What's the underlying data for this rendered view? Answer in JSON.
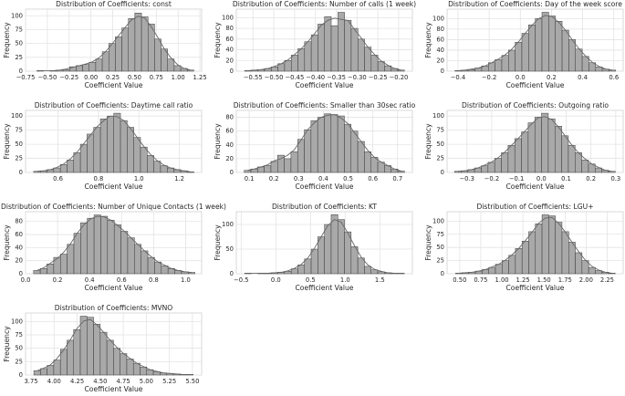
{
  "chart_data": [
    {
      "type": "histogram",
      "title": "Distribution of Coefficients: const",
      "xlabel": "Coefficient Value",
      "ylabel": "Frequency",
      "color": "#a9a9a9",
      "edgecolor": "#3a3a3a",
      "kde_color": "#666666",
      "grid": true,
      "bins": [
        -0.62,
        -0.545,
        -0.47,
        -0.395,
        -0.32,
        -0.245,
        -0.17,
        -0.095,
        -0.02,
        0.055,
        0.13,
        0.205,
        0.28,
        0.355,
        0.43,
        0.505,
        0.58,
        0.655,
        0.73,
        0.805,
        0.88,
        0.955,
        1.03,
        1.105,
        1.18
      ],
      "counts": [
        1,
        0,
        1,
        2,
        3,
        8,
        10,
        12,
        16,
        22,
        35,
        50,
        62,
        78,
        95,
        105,
        98,
        85,
        58,
        40,
        22,
        10,
        5,
        2
      ],
      "kde": [
        1,
        1,
        1,
        2,
        4,
        7,
        10,
        13,
        17,
        24,
        35,
        49,
        64,
        79,
        93,
        99,
        96,
        80,
        61,
        40,
        24,
        12,
        5,
        2
      ],
      "xlim": [
        -0.75,
        1.27
      ],
      "ylim": [
        0,
        112
      ],
      "xticks": [
        {
          "value": -0.75,
          "label": "−0.75"
        },
        {
          "value": -0.5,
          "label": "−0.50"
        },
        {
          "value": -0.25,
          "label": "−0.25"
        },
        {
          "value": 0,
          "label": "0.00"
        },
        {
          "value": 0.25,
          "label": "0.25"
        },
        {
          "value": 0.5,
          "label": "0.50"
        },
        {
          "value": 0.75,
          "label": "0.75"
        },
        {
          "value": 1,
          "label": "1.00"
        },
        {
          "value": 1.25,
          "label": "1.25"
        }
      ],
      "yticks": [
        0,
        25,
        50,
        75,
        100
      ]
    },
    {
      "type": "histogram",
      "title": "Distribution of Coefficients: Number of calls (1 week)",
      "xlabel": "Coefficient Value",
      "ylabel": "Frequency",
      "color": "#a9a9a9",
      "edgecolor": "#3a3a3a",
      "kde_color": "#666666",
      "grid": true,
      "bins": [
        -0.57,
        -0.554,
        -0.538,
        -0.522,
        -0.506,
        -0.49,
        -0.474,
        -0.458,
        -0.442,
        -0.426,
        -0.41,
        -0.394,
        -0.378,
        -0.362,
        -0.346,
        -0.33,
        -0.314,
        -0.298,
        -0.282,
        -0.266,
        -0.25,
        -0.234,
        -0.218,
        -0.202,
        -0.186
      ],
      "counts": [
        1,
        2,
        3,
        5,
        8,
        14,
        20,
        30,
        42,
        55,
        68,
        88,
        102,
        85,
        110,
        95,
        80,
        60,
        45,
        30,
        18,
        10,
        5,
        2
      ],
      "kde": [
        1,
        2,
        3,
        5,
        9,
        14,
        21,
        31,
        42,
        55,
        70,
        86,
        95,
        99,
        97,
        95,
        78,
        62,
        45,
        31,
        19,
        11,
        5,
        2
      ],
      "xlim": [
        -0.59,
        -0.167
      ],
      "ylim": [
        0,
        116
      ],
      "xticks": [
        {
          "value": -0.55,
          "label": "−0.55"
        },
        {
          "value": -0.5,
          "label": "−0.50"
        },
        {
          "value": -0.45,
          "label": "−0.45"
        },
        {
          "value": -0.4,
          "label": "−0.40"
        },
        {
          "value": -0.35,
          "label": "−0.35"
        },
        {
          "value": -0.3,
          "label": "−0.30"
        },
        {
          "value": -0.25,
          "label": "−0.25"
        },
        {
          "value": -0.2,
          "label": "−0.20"
        }
      ],
      "yticks": [
        0,
        20,
        40,
        60,
        80,
        100
      ]
    },
    {
      "type": "histogram",
      "title": "Distribution of Coefficients: Day of the week score",
      "xlabel": "Coefficient Value",
      "ylabel": "Frequency",
      "color": "#a9a9a9",
      "edgecolor": "#3a3a3a",
      "kde_color": "#666666",
      "grid": true,
      "bins": [
        -0.42,
        -0.377,
        -0.334,
        -0.291,
        -0.248,
        -0.205,
        -0.162,
        -0.119,
        -0.076,
        -0.033,
        0.01,
        0.053,
        0.096,
        0.139,
        0.182,
        0.225,
        0.268,
        0.311,
        0.354,
        0.397,
        0.44,
        0.483,
        0.526,
        0.569,
        0.612
      ],
      "counts": [
        1,
        2,
        3,
        6,
        10,
        16,
        22,
        30,
        40,
        55,
        72,
        88,
        100,
        112,
        105,
        95,
        78,
        60,
        42,
        28,
        16,
        8,
        4,
        2
      ],
      "kde": [
        1,
        2,
        4,
        6,
        10,
        16,
        23,
        31,
        42,
        56,
        72,
        87,
        100,
        106,
        104,
        93,
        78,
        60,
        43,
        29,
        17,
        9,
        4,
        2
      ],
      "xlim": [
        -0.47,
        0.66
      ],
      "ylim": [
        0,
        118
      ],
      "xticks": [
        {
          "value": -0.4,
          "label": "−0.4"
        },
        {
          "value": -0.2,
          "label": "−0.2"
        },
        {
          "value": 0,
          "label": "0.0"
        },
        {
          "value": 0.2,
          "label": "0.2"
        },
        {
          "value": 0.4,
          "label": "0.4"
        },
        {
          "value": 0.6,
          "label": "0.6"
        }
      ],
      "yticks": [
        0,
        20,
        40,
        60,
        80,
        100
      ]
    },
    {
      "type": "histogram",
      "title": "Distribution of Coefficients: Daytime call ratio",
      "xlabel": "Coefficient Value",
      "ylabel": "Frequency",
      "color": "#a9a9a9",
      "edgecolor": "#3a3a3a",
      "kde_color": "#666666",
      "grid": true,
      "bins": [
        0.48,
        0.513,
        0.546,
        0.579,
        0.612,
        0.645,
        0.678,
        0.711,
        0.744,
        0.777,
        0.81,
        0.843,
        0.876,
        0.909,
        0.942,
        0.975,
        1.008,
        1.041,
        1.074,
        1.107,
        1.14,
        1.173,
        1.206,
        1.239,
        1.272
      ],
      "counts": [
        2,
        3,
        5,
        8,
        14,
        22,
        35,
        50,
        68,
        80,
        95,
        100,
        105,
        92,
        80,
        62,
        45,
        30,
        20,
        12,
        8,
        5,
        3,
        1
      ],
      "kde": [
        2,
        3,
        5,
        9,
        15,
        24,
        36,
        51,
        66,
        81,
        92,
        100,
        99,
        92,
        78,
        62,
        46,
        32,
        21,
        13,
        8,
        5,
        3,
        1
      ],
      "xlim": [
        0.44,
        1.31
      ],
      "ylim": [
        0,
        110
      ],
      "xticks": [
        {
          "value": 0.6,
          "label": "0.6"
        },
        {
          "value": 0.8,
          "label": "0.8"
        },
        {
          "value": 1,
          "label": "1.0"
        },
        {
          "value": 1.2,
          "label": "1.2"
        }
      ],
      "yticks": [
        0,
        25,
        50,
        75,
        100
      ]
    },
    {
      "type": "histogram",
      "title": "Distribution of Coefficients: Smaller than 30sec ratio",
      "xlabel": "Coefficient Value",
      "ylabel": "Frequency",
      "color": "#a9a9a9",
      "edgecolor": "#3a3a3a",
      "kde_color": "#666666",
      "grid": true,
      "bins": [
        0.08,
        0.107,
        0.134,
        0.161,
        0.188,
        0.215,
        0.242,
        0.269,
        0.296,
        0.323,
        0.35,
        0.377,
        0.404,
        0.431,
        0.458,
        0.485,
        0.512,
        0.539,
        0.566,
        0.593,
        0.62,
        0.647,
        0.674,
        0.701,
        0.728
      ],
      "counts": [
        3,
        5,
        8,
        10,
        16,
        25,
        20,
        30,
        48,
        62,
        75,
        80,
        85,
        84,
        82,
        70,
        60,
        45,
        30,
        22,
        15,
        10,
        5,
        2
      ],
      "kde": [
        3,
        5,
        8,
        11,
        17,
        20,
        25,
        33,
        47,
        62,
        72,
        80,
        83,
        84,
        79,
        71,
        58,
        45,
        32,
        22,
        15,
        10,
        5,
        2
      ],
      "xlim": [
        0.048,
        0.76
      ],
      "ylim": [
        0,
        90
      ],
      "xticks": [
        0.1,
        0.2,
        0.3,
        0.4,
        0.5,
        0.6,
        0.7
      ],
      "yticks": [
        0,
        20,
        40,
        60,
        80
      ]
    },
    {
      "type": "histogram",
      "title": "Distribution of Coefficients: Outgoing ratio",
      "xlabel": "Coefficient Value",
      "ylabel": "Frequency",
      "color": "#a9a9a9",
      "edgecolor": "#3a3a3a",
      "kde_color": "#666666",
      "grid": true,
      "bins": [
        -0.35,
        -0.323,
        -0.296,
        -0.269,
        -0.242,
        -0.215,
        -0.188,
        -0.161,
        -0.134,
        -0.107,
        -0.08,
        -0.053,
        -0.026,
        0.001,
        0.028,
        0.055,
        0.082,
        0.109,
        0.136,
        0.163,
        0.19,
        0.217,
        0.244,
        0.271,
        0.298
      ],
      "counts": [
        2,
        3,
        5,
        8,
        12,
        18,
        25,
        35,
        48,
        60,
        72,
        88,
        98,
        105,
        95,
        82,
        65,
        48,
        35,
        22,
        15,
        8,
        4,
        2
      ],
      "kde": [
        2,
        3,
        5,
        8,
        13,
        18,
        26,
        36,
        48,
        60,
        73,
        86,
        97,
        99,
        94,
        81,
        65,
        49,
        35,
        24,
        15,
        9,
        4,
        2
      ],
      "xlim": [
        -0.38,
        0.33
      ],
      "ylim": [
        0,
        110
      ],
      "xticks": [
        {
          "value": -0.3,
          "label": "−0.3"
        },
        {
          "value": -0.2,
          "label": "−0.2"
        },
        {
          "value": -0.1,
          "label": "−0.1"
        },
        {
          "value": 0,
          "label": "0.0"
        },
        {
          "value": 0.1,
          "label": "0.1"
        },
        {
          "value": 0.2,
          "label": "0.2"
        },
        {
          "value": 0.3,
          "label": "0.3"
        }
      ],
      "yticks": [
        0,
        25,
        50,
        75,
        100
      ]
    },
    {
      "type": "histogram",
      "title": "Distribution of Coefficients: Number of Unique Contacts (1 week)",
      "xlabel": "Coefficient Value",
      "ylabel": "Frequency",
      "color": "#a9a9a9",
      "edgecolor": "#3a3a3a",
      "kde_color": "#666666",
      "grid": true,
      "bins": [
        0.05,
        0.092,
        0.134,
        0.176,
        0.218,
        0.26,
        0.302,
        0.344,
        0.386,
        0.428,
        0.47,
        0.512,
        0.554,
        0.596,
        0.638,
        0.68,
        0.722,
        0.764,
        0.806,
        0.848,
        0.89,
        0.932,
        0.974,
        1.016,
        1.058
      ],
      "counts": [
        5,
        8,
        15,
        25,
        30,
        45,
        62,
        78,
        85,
        90,
        88,
        82,
        75,
        65,
        55,
        45,
        35,
        25,
        18,
        12,
        8,
        5,
        3,
        2
      ],
      "kde": [
        5,
        9,
        16,
        23,
        33,
        46,
        62,
        75,
        84,
        88,
        87,
        82,
        74,
        65,
        55,
        45,
        35,
        26,
        18,
        13,
        8,
        5,
        3,
        2
      ],
      "xlim": [
        0,
        1.1
      ],
      "ylim": [
        0,
        95
      ],
      "xticks": [
        {
          "value": 0,
          "label": "0.0"
        },
        {
          "value": 0.2,
          "label": "0.2"
        },
        {
          "value": 0.4,
          "label": "0.4"
        },
        {
          "value": 0.6,
          "label": "0.6"
        },
        {
          "value": 0.8,
          "label": "0.8"
        },
        {
          "value": 1,
          "label": "1.0"
        }
      ],
      "yticks": [
        0,
        20,
        40,
        60,
        80
      ]
    },
    {
      "type": "histogram",
      "title": "Distribution of Coefficients: KT",
      "xlabel": "Coefficient Value",
      "ylabel": "Frequency",
      "color": "#a9a9a9",
      "edgecolor": "#3a3a3a",
      "kde_color": "#666666",
      "grid": true,
      "bins": [
        -0.45,
        -0.354,
        -0.258,
        -0.162,
        -0.066,
        0.03,
        0.126,
        0.222,
        0.318,
        0.414,
        0.51,
        0.606,
        0.702,
        0.798,
        0.894,
        0.99,
        1.086,
        1.182,
        1.278,
        1.374,
        1.47,
        1.566,
        1.662,
        1.758,
        1.854
      ],
      "counts": [
        1,
        0,
        1,
        1,
        2,
        3,
        5,
        10,
        18,
        30,
        50,
        75,
        100,
        120,
        110,
        85,
        55,
        32,
        15,
        8,
        4,
        2,
        1,
        1
      ],
      "kde": [
        1,
        1,
        1,
        1,
        2,
        3,
        6,
        11,
        19,
        32,
        52,
        75,
        98,
        110,
        105,
        83,
        57,
        34,
        18,
        9,
        5,
        2,
        1,
        1
      ],
      "xlim": [
        -0.57,
        1.97
      ],
      "ylim": [
        0,
        126
      ],
      "xticks": [
        {
          "value": -0.5,
          "label": "−0.5"
        },
        {
          "value": 0,
          "label": "0.0"
        },
        {
          "value": 0.5,
          "label": "0.5"
        },
        {
          "value": 1,
          "label": "1.0"
        },
        {
          "value": 1.5,
          "label": "1.5"
        }
      ],
      "yticks": [
        0,
        50,
        100
      ]
    },
    {
      "type": "histogram",
      "title": "Distribution of Coefficients: LGU+",
      "xlabel": "Coefficient Value",
      "ylabel": "Frequency",
      "color": "#a9a9a9",
      "edgecolor": "#3a3a3a",
      "kde_color": "#666666",
      "grid": true,
      "bins": [
        0.45,
        0.529,
        0.608,
        0.687,
        0.766,
        0.845,
        0.924,
        1.003,
        1.082,
        1.161,
        1.24,
        1.319,
        1.398,
        1.477,
        1.556,
        1.635,
        1.714,
        1.793,
        1.872,
        1.951,
        2.03,
        2.109,
        2.188,
        2.267,
        2.346
      ],
      "counts": [
        1,
        2,
        3,
        5,
        8,
        12,
        18,
        25,
        35,
        48,
        62,
        80,
        95,
        112,
        110,
        98,
        80,
        60,
        40,
        25,
        12,
        6,
        3,
        1
      ],
      "kde": [
        1,
        2,
        3,
        5,
        8,
        13,
        18,
        26,
        36,
        48,
        63,
        79,
        96,
        106,
        107,
        96,
        79,
        60,
        42,
        26,
        14,
        7,
        3,
        1
      ],
      "xlim": [
        0.35,
        2.44
      ],
      "ylim": [
        0,
        118
      ],
      "xticks": [
        {
          "value": 0.5,
          "label": "0.50"
        },
        {
          "value": 0.75,
          "label": "0.75"
        },
        {
          "value": 1,
          "label": "1.00"
        },
        {
          "value": 1.25,
          "label": "1.25"
        },
        {
          "value": 1.5,
          "label": "1.50"
        },
        {
          "value": 1.75,
          "label": "1.75"
        },
        {
          "value": 2,
          "label": "2.00"
        },
        {
          "value": 2.25,
          "label": "2.25"
        }
      ],
      "yticks": [
        0,
        25,
        50,
        75,
        100
      ]
    },
    {
      "type": "histogram",
      "title": "Distribution of Coefficients: MVNO",
      "xlabel": "Coefficient Value",
      "ylabel": "Frequency",
      "color": "#a9a9a9",
      "edgecolor": "#3a3a3a",
      "kde_color": "#666666",
      "grid": true,
      "bins": [
        3.78,
        3.852,
        3.924,
        3.996,
        4.068,
        4.14,
        4.212,
        4.284,
        4.356,
        4.428,
        4.5,
        4.572,
        4.644,
        4.716,
        4.788,
        4.86,
        4.932,
        5.004,
        5.076,
        5.148,
        5.22,
        5.292,
        5.364,
        5.436,
        5.508
      ],
      "counts": [
        8,
        12,
        18,
        28,
        48,
        65,
        85,
        110,
        108,
        95,
        80,
        65,
        50,
        40,
        30,
        22,
        15,
        10,
        6,
        4,
        3,
        2,
        1,
        1
      ],
      "kde": [
        8,
        13,
        19,
        31,
        47,
        66,
        87,
        101,
        104,
        94,
        80,
        65,
        52,
        40,
        31,
        22,
        16,
        10,
        7,
        4,
        3,
        2,
        1,
        1
      ],
      "xlim": [
        3.69,
        5.6
      ],
      "ylim": [
        0,
        116
      ],
      "xticks": [
        {
          "value": 3.75,
          "label": "3.75"
        },
        {
          "value": 4,
          "label": "4.00"
        },
        {
          "value": 4.25,
          "label": "4.25"
        },
        {
          "value": 4.5,
          "label": "4.50"
        },
        {
          "value": 4.75,
          "label": "4.75"
        },
        {
          "value": 5,
          "label": "5.00"
        },
        {
          "value": 5.25,
          "label": "5.25"
        },
        {
          "value": 5.5,
          "label": "5.50"
        }
      ],
      "yticks": [
        0,
        25,
        50,
        75,
        100
      ]
    }
  ]
}
